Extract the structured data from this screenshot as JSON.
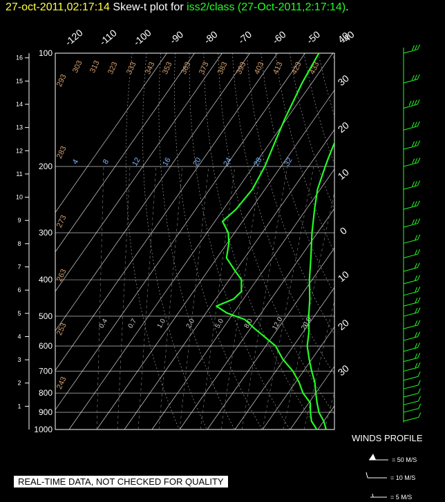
{
  "title": {
    "datetime": "27-oct-2011,02:17:14",
    "prefix": "Skew-t plot for",
    "station": "iss2/class",
    "run": "(27-Oct-2011,2:17:14)",
    "suffix": "."
  },
  "colors": {
    "trace": "#22ff22",
    "datetime": "#ffff44",
    "theta": "#d2a070",
    "mixing": "#7ab6ff",
    "grid": "#ffffff"
  },
  "chart_data": {
    "type": "line",
    "pressure_levels_mb": [
      100,
      200,
      300,
      400,
      500,
      600,
      700,
      800,
      900,
      1000
    ],
    "height_km_ticks": [
      1,
      2,
      3,
      4,
      5,
      6,
      7,
      8,
      9,
      10,
      11,
      12,
      13,
      14,
      15,
      16
    ],
    "temperature_ticks_top": [
      -120,
      -110,
      -100,
      -90,
      -80,
      -70,
      -60,
      -50,
      -40
    ],
    "temperature_ticks_right": [
      30,
      20,
      10,
      0,
      -10,
      -20,
      -30,
      -40
    ],
    "temperature_ticks_right_labels": [
      "30",
      "20",
      "10",
      "0",
      "10",
      "20",
      "30",
      "40"
    ],
    "theta_labels": [
      293,
      303,
      313,
      323,
      333,
      343,
      353,
      363,
      373,
      383,
      393,
      403,
      413,
      423,
      433,
      283,
      273,
      263,
      253,
      243
    ],
    "mixing_labels": [
      "4",
      "8",
      "12",
      "16",
      "20",
      "24",
      "28",
      "32"
    ],
    "lower_mixing_labels": [
      "0.4",
      "0.7",
      "1.0",
      "2.0",
      "5.0",
      "8.0",
      "12.0",
      "20.0"
    ],
    "series": [
      {
        "points": [
          [
            100,
            -85
          ],
          [
            120,
            -84
          ],
          [
            150,
            -80
          ],
          [
            180,
            -78
          ],
          [
            200,
            -76
          ],
          [
            230,
            -74
          ],
          [
            260,
            -76
          ],
          [
            280,
            -77
          ],
          [
            300,
            -72
          ],
          [
            320,
            -70
          ],
          [
            350,
            -66
          ],
          [
            380,
            -60
          ],
          [
            400,
            -56
          ],
          [
            430,
            -52
          ],
          [
            450,
            -54
          ],
          [
            470,
            -58
          ],
          [
            490,
            -52
          ],
          [
            510,
            -45
          ],
          [
            540,
            -38
          ],
          [
            560,
            -34
          ],
          [
            600,
            -27
          ],
          [
            650,
            -20
          ],
          [
            700,
            -14
          ],
          [
            750,
            -9
          ],
          [
            800,
            -4
          ],
          [
            850,
            0
          ],
          [
            900,
            3
          ],
          [
            950,
            6
          ],
          [
            1000,
            9
          ]
        ]
      },
      {
        "points": [
          [
            100,
            -64
          ],
          [
            130,
            -62
          ],
          [
            160,
            -58
          ],
          [
            190,
            -55
          ],
          [
            200,
            -54
          ],
          [
            230,
            -51
          ],
          [
            260,
            -47
          ],
          [
            300,
            -42
          ],
          [
            350,
            -36
          ],
          [
            400,
            -31
          ],
          [
            450,
            -26
          ],
          [
            500,
            -22
          ],
          [
            550,
            -18
          ],
          [
            600,
            -15
          ],
          [
            650,
            -11
          ],
          [
            700,
            -7
          ],
          [
            750,
            -3
          ],
          [
            800,
            0
          ],
          [
            850,
            3
          ],
          [
            900,
            6
          ],
          [
            950,
            10
          ],
          [
            1000,
            13
          ]
        ]
      }
    ],
    "wind_profile_barbs": [
      {
        "p": 100,
        "spd": 25,
        "dir": 250
      },
      {
        "p": 120,
        "spd": 30,
        "dir": 255
      },
      {
        "p": 140,
        "spd": 35,
        "dir": 260
      },
      {
        "p": 160,
        "spd": 30,
        "dir": 255
      },
      {
        "p": 180,
        "spd": 25,
        "dir": 250
      },
      {
        "p": 200,
        "spd": 25,
        "dir": 245
      },
      {
        "p": 230,
        "spd": 30,
        "dir": 250
      },
      {
        "p": 260,
        "spd": 30,
        "dir": 255
      },
      {
        "p": 290,
        "spd": 25,
        "dir": 250
      },
      {
        "p": 320,
        "spd": 20,
        "dir": 245
      },
      {
        "p": 350,
        "spd": 20,
        "dir": 250
      },
      {
        "p": 380,
        "spd": 20,
        "dir": 255
      },
      {
        "p": 410,
        "spd": 15,
        "dir": 250
      },
      {
        "p": 440,
        "spd": 15,
        "dir": 245
      },
      {
        "p": 470,
        "spd": 15,
        "dir": 240
      },
      {
        "p": 500,
        "spd": 15,
        "dir": 240
      },
      {
        "p": 540,
        "spd": 15,
        "dir": 245
      },
      {
        "p": 580,
        "spd": 15,
        "dir": 250
      },
      {
        "p": 620,
        "spd": 20,
        "dir": 250
      },
      {
        "p": 660,
        "spd": 15,
        "dir": 245
      },
      {
        "p": 700,
        "spd": 15,
        "dir": 240
      },
      {
        "p": 740,
        "spd": 10,
        "dir": 235
      },
      {
        "p": 780,
        "spd": 10,
        "dir": 230
      },
      {
        "p": 820,
        "spd": 10,
        "dir": 225
      },
      {
        "p": 860,
        "spd": 5,
        "dir": 220
      },
      {
        "p": 900,
        "spd": 5,
        "dir": 215
      },
      {
        "p": 950,
        "spd": 5,
        "dir": 210
      }
    ]
  },
  "winds_legend": {
    "title": "WINDS PROFILE",
    "items": [
      "= 50 M/S",
      "= 10 M/S",
      "= 5 M/S"
    ]
  },
  "footer_notice": "REAL-TIME DATA, NOT CHECKED FOR QUALITY"
}
